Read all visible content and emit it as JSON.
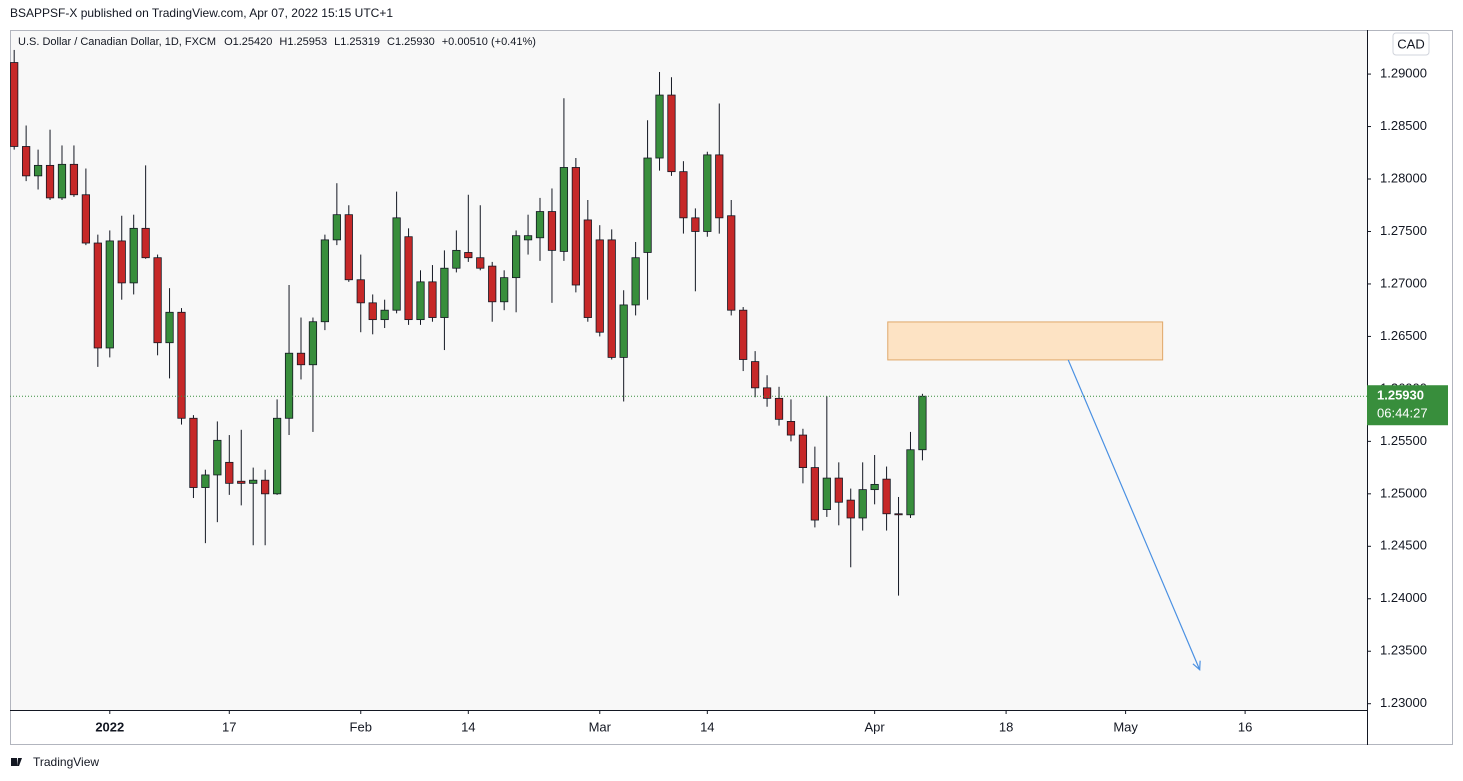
{
  "chart_data": {
    "type": "candlestick",
    "publisher": "BSAPPSF-X published on TradingView.com, Apr 07, 2022 15:15 UTC+1",
    "symbol": "U.S. Dollar / Canadian Dollar, 1D, FXCM",
    "ohlc_labels": [
      "O1.25420",
      "H1.25953",
      "L1.25319",
      "C1.25930",
      "+0.00510 (+0.41%)"
    ],
    "currency": "CAD",
    "brand": "TradingView",
    "up_color": "#388e3c",
    "down_color": "#c62828",
    "open": [
      1.2911,
      1.2831,
      1.2803,
      1.2813,
      1.2782,
      1.2814,
      1.2785,
      1.2739,
      1.2639,
      1.2741,
      1.2701,
      1.2753,
      1.2725,
      1.2644,
      1.2673,
      1.2572,
      1.2506,
      1.2518,
      1.253,
      1.2512,
      1.251,
      1.2513,
      1.25,
      1.2572,
      1.2634,
      1.2623,
      1.2664,
      1.2742,
      1.2766,
      1.2704,
      1.2682,
      1.2666,
      1.2675,
      1.2745,
      1.2666,
      1.2702,
      1.2668,
      1.2715,
      1.273,
      1.2725,
      1.2717,
      1.2683,
      1.2706,
      1.2742,
      1.2744,
      1.2769,
      1.2731,
      1.2811,
      1.2761,
      1.2742,
      1.2742,
      1.263,
      1.268,
      1.273,
      1.282,
      1.288,
      1.2807,
      1.2763,
      1.275,
      1.2823,
      1.2765,
      1.2675,
      1.2626,
      1.2601,
      1.2591,
      1.2569,
      1.2556,
      1.2525,
      1.2485,
      1.2515,
      1.2494,
      1.2477,
      1.2504,
      1.2514,
      1.2481,
      1.248,
      1.2542
    ],
    "high": [
      1.2923,
      1.2851,
      1.2828,
      1.2847,
      1.2832,
      1.2832,
      1.281,
      1.2747,
      1.2751,
      1.2765,
      1.2766,
      1.2813,
      1.2728,
      1.2696,
      1.2677,
      1.2575,
      1.2523,
      1.2569,
      1.2556,
      1.2561,
      1.2525,
      1.2523,
      1.259,
      1.2699,
      1.2668,
      1.2668,
      1.2747,
      1.2796,
      1.2775,
      1.2728,
      1.269,
      1.2685,
      1.2788,
      1.2753,
      1.2713,
      1.2718,
      1.2732,
      1.2751,
      1.2785,
      1.2775,
      1.2721,
      1.2713,
      1.2751,
      1.2766,
      1.2782,
      1.2791,
      1.2877,
      1.282,
      1.278,
      1.2756,
      1.2752,
      1.2694,
      1.274,
      1.2856,
      1.2902,
      1.2897,
      1.2817,
      1.2772,
      1.2826,
      1.2872,
      1.278,
      1.2678,
      1.2636,
      1.2613,
      1.2602,
      1.259,
      1.2562,
      1.2545,
      1.2593,
      1.253,
      1.2505,
      1.253,
      1.2537,
      1.2526,
      1.2497,
      1.2559,
      1.25953
    ],
    "low": [
      1.2828,
      1.2798,
      1.279,
      1.278,
      1.278,
      1.2783,
      1.2737,
      1.2621,
      1.263,
      1.2685,
      1.269,
      1.2724,
      1.2632,
      1.261,
      1.2566,
      1.2496,
      1.2453,
      1.2473,
      1.2499,
      1.2489,
      1.2451,
      1.2451,
      1.2499,
      1.2556,
      1.2609,
      1.2559,
      1.2656,
      1.2737,
      1.2702,
      1.2654,
      1.2652,
      1.2658,
      1.2672,
      1.2661,
      1.2661,
      1.2664,
      1.2637,
      1.2711,
      1.2721,
      1.2713,
      1.2664,
      1.2675,
      1.2673,
      1.2728,
      1.2722,
      1.2682,
      1.2722,
      1.2692,
      1.2664,
      1.265,
      1.2628,
      1.2588,
      1.267,
      1.2685,
      1.2808,
      1.2803,
      1.2748,
      1.2693,
      1.2745,
      1.2748,
      1.267,
      1.2617,
      1.2592,
      1.2583,
      1.2565,
      1.255,
      1.251,
      1.2468,
      1.2478,
      1.247,
      1.243,
      1.2465,
      1.249,
      1.2465,
      1.2403,
      1.2477,
      1.25319
    ],
    "close": [
      1.2831,
      1.2803,
      1.2813,
      1.2782,
      1.2814,
      1.2785,
      1.2739,
      1.2639,
      1.2741,
      1.2701,
      1.2753,
      1.2725,
      1.2644,
      1.2673,
      1.2572,
      1.2506,
      1.2518,
      1.2551,
      1.251,
      1.251,
      1.2513,
      1.25,
      1.2572,
      1.2634,
      1.2623,
      1.2664,
      1.2742,
      1.2766,
      1.2704,
      1.2682,
      1.2666,
      1.2675,
      1.2763,
      1.2666,
      1.2702,
      1.2668,
      1.2715,
      1.2732,
      1.2725,
      1.2715,
      1.2683,
      1.2706,
      1.2746,
      1.2746,
      1.2769,
      1.2732,
      1.2811,
      1.2699,
      1.2668,
      1.2654,
      1.263,
      1.268,
      1.2725,
      1.282,
      1.288,
      1.2807,
      1.2763,
      1.275,
      1.2823,
      1.2763,
      1.2675,
      1.2628,
      1.2601,
      1.2591,
      1.2571,
      1.2556,
      1.2525,
      1.2475,
      1.2515,
      1.2492,
      1.2477,
      1.2504,
      1.2509,
      1.2481,
      1.248,
      1.2542,
      1.2593
    ],
    "xlim": [
      -0.35,
      113.2
    ],
    "xticks": [
      {
        "value": 8,
        "label": "2022"
      },
      {
        "value": 18,
        "label": "17"
      },
      {
        "value": 29,
        "label": "Feb"
      },
      {
        "value": 38,
        "label": "14"
      },
      {
        "value": 49,
        "label": "Mar"
      },
      {
        "value": 58,
        "label": "14"
      },
      {
        "value": 72,
        "label": "Apr"
      },
      {
        "value": 83,
        "label": "18"
      },
      {
        "value": 93,
        "label": "May"
      },
      {
        "value": 103,
        "label": "16"
      }
    ],
    "ylim": [
      1.2294,
      1.2942
    ],
    "yticks": [
      {
        "value": 1.23,
        "label": "1.23000"
      },
      {
        "value": 1.235,
        "label": "1.23500"
      },
      {
        "value": 1.24,
        "label": "1.24000"
      },
      {
        "value": 1.245,
        "label": "1.24500"
      },
      {
        "value": 1.25,
        "label": "1.25000"
      },
      {
        "value": 1.255,
        "label": "1.25500"
      },
      {
        "value": 1.26,
        "label": "1.26000"
      },
      {
        "value": 1.265,
        "label": "1.26500"
      },
      {
        "value": 1.27,
        "label": "1.27000"
      },
      {
        "value": 1.275,
        "label": "1.27500"
      },
      {
        "value": 1.28,
        "label": "1.28000"
      },
      {
        "value": 1.285,
        "label": "1.28500"
      },
      {
        "value": 1.29,
        "label": "1.29000"
      }
    ],
    "grid": false,
    "last_price": {
      "value": 1.2593,
      "label": "1.25930",
      "countdown": "06:44:27",
      "color": "#388e3c"
    },
    "zone": {
      "x": [
        73.1,
        96.1
      ],
      "y": [
        1.26276,
        1.26638
      ],
      "color": "#fde3c4",
      "border": "#e0a86a"
    },
    "arrow": {
      "x": [
        88.2,
        99.2
      ],
      "y": [
        1.26276,
        1.23324
      ],
      "color": "#4a90e2"
    }
  }
}
